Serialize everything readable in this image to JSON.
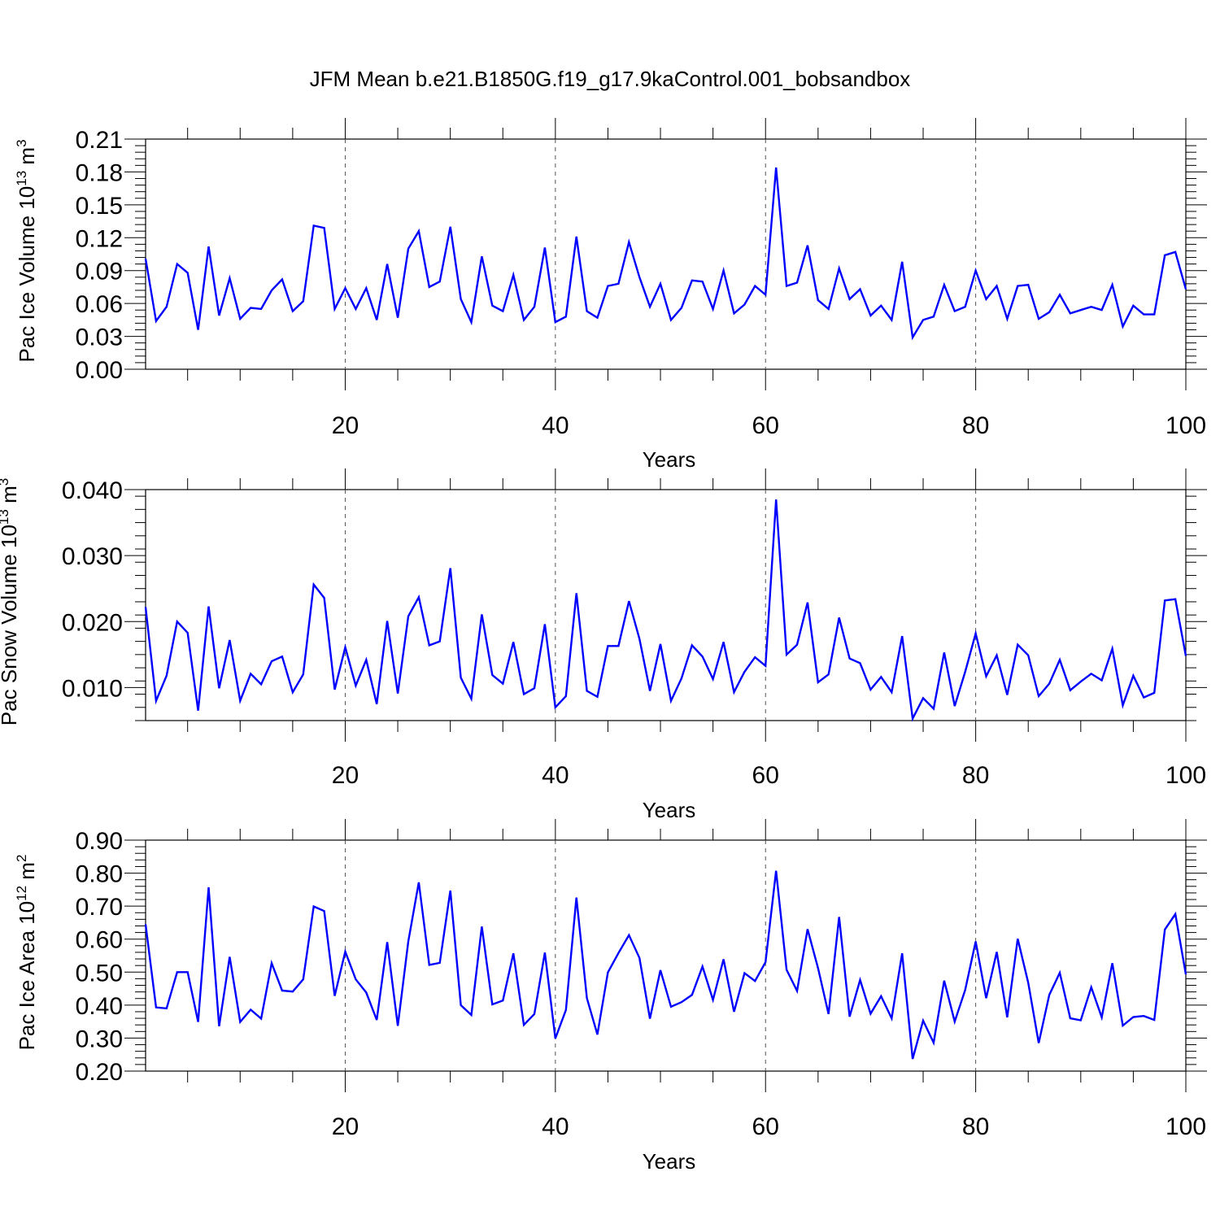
{
  "figure": {
    "title": "JFM Mean b.e21.B1850G.f19_g17.9kaControl.001_bobsandbox"
  },
  "chart_data": [
    {
      "type": "line",
      "ylabel": "Pac Ice Volume 10",
      "ylabel_exp": "13",
      "ylabel_unit": "m",
      "ylabel_unit_exp": "3",
      "xlabel": "Years",
      "xlim": [
        1,
        100
      ],
      "ylim": [
        0.0,
        0.21
      ],
      "x_ticks": [
        "20",
        "40",
        "60",
        "80",
        "100"
      ],
      "y_ticks": [
        "0.00",
        "0.03",
        "0.06",
        "0.09",
        "0.12",
        "0.15",
        "0.18",
        "0.21"
      ],
      "grid": "dashed vertical lines at 20, 40, 60, 80",
      "series": [
        {
          "color": "#0000ff",
          "x_start": 1,
          "values": [
            0.101,
            0.044,
            0.057,
            0.096,
            0.088,
            0.036,
            0.112,
            0.049,
            0.083,
            0.046,
            0.056,
            0.055,
            0.072,
            0.082,
            0.053,
            0.062,
            0.131,
            0.129,
            0.055,
            0.074,
            0.055,
            0.074,
            0.045,
            0.096,
            0.047,
            0.11,
            0.126,
            0.075,
            0.08,
            0.13,
            0.064,
            0.043,
            0.103,
            0.058,
            0.053,
            0.086,
            0.045,
            0.057,
            0.111,
            0.043,
            0.048,
            0.121,
            0.053,
            0.047,
            0.076,
            0.078,
            0.116,
            0.084,
            0.057,
            0.078,
            0.045,
            0.056,
            0.081,
            0.08,
            0.055,
            0.09,
            0.051,
            0.059,
            0.076,
            0.068,
            0.184,
            0.076,
            0.079,
            0.113,
            0.063,
            0.055,
            0.092,
            0.064,
            0.073,
            0.049,
            0.058,
            0.045,
            0.098,
            0.029,
            0.045,
            0.048,
            0.077,
            0.053,
            0.057,
            0.09,
            0.064,
            0.076,
            0.046,
            0.076,
            0.077,
            0.046,
            0.052,
            0.068,
            0.051,
            0.054,
            0.057,
            0.054,
            0.077,
            0.039,
            0.058,
            0.05,
            0.05,
            0.104,
            0.107,
            0.073
          ]
        }
      ]
    },
    {
      "type": "line",
      "ylabel": "Pac Snow Volume 10",
      "ylabel_exp": "13",
      "ylabel_unit": "m",
      "ylabel_unit_exp": "3",
      "xlabel": "Years",
      "xlim": [
        1,
        100
      ],
      "ylim": [
        0.005,
        0.04
      ],
      "x_ticks": [
        "20",
        "40",
        "60",
        "80",
        "100"
      ],
      "y_ticks": [
        "0.010",
        "0.020",
        "0.030",
        "0.040"
      ],
      "grid": "dashed vertical lines at 20, 40, 60, 80",
      "series": [
        {
          "color": "#0000ff",
          "x_start": 1,
          "values": [
            0.0222,
            0.008,
            0.0118,
            0.02,
            0.0183,
            0.0065,
            0.0223,
            0.0099,
            0.0172,
            0.008,
            0.0121,
            0.0105,
            0.014,
            0.0147,
            0.0093,
            0.012,
            0.0256,
            0.0236,
            0.0097,
            0.0161,
            0.0103,
            0.0142,
            0.0075,
            0.0201,
            0.0091,
            0.0208,
            0.0237,
            0.0164,
            0.017,
            0.0281,
            0.0115,
            0.0083,
            0.0211,
            0.0119,
            0.0106,
            0.0169,
            0.009,
            0.0099,
            0.0196,
            0.007,
            0.0087,
            0.0243,
            0.0095,
            0.0086,
            0.0163,
            0.0163,
            0.0231,
            0.0174,
            0.0095,
            0.0166,
            0.008,
            0.0114,
            0.0164,
            0.0147,
            0.0113,
            0.0169,
            0.0093,
            0.0124,
            0.0146,
            0.0133,
            0.0385,
            0.015,
            0.0165,
            0.0229,
            0.0108,
            0.012,
            0.0206,
            0.0144,
            0.0137,
            0.0097,
            0.0116,
            0.0093,
            0.0178,
            0.0053,
            0.0084,
            0.0068,
            0.0153,
            0.0072,
            0.0124,
            0.0182,
            0.0117,
            0.0149,
            0.0089,
            0.0165,
            0.0149,
            0.0087,
            0.0106,
            0.0142,
            0.0096,
            0.0109,
            0.0121,
            0.0111,
            0.0159,
            0.0073,
            0.0118,
            0.0085,
            0.0092,
            0.0232,
            0.0234,
            0.0148
          ]
        }
      ]
    },
    {
      "type": "line",
      "ylabel": "Pac Ice Area 10",
      "ylabel_exp": "12",
      "ylabel_unit": "m",
      "ylabel_unit_exp": "2",
      "xlabel": "Years",
      "xlim": [
        1,
        100
      ],
      "ylim": [
        0.2,
        0.9
      ],
      "x_ticks": [
        "20",
        "40",
        "60",
        "80",
        "100"
      ],
      "y_ticks": [
        "0.20",
        "0.30",
        "0.40",
        "0.50",
        "0.60",
        "0.70",
        "0.80",
        "0.90"
      ],
      "grid": "dashed vertical lines at 20, 40, 60, 80",
      "series": [
        {
          "color": "#0000ff",
          "x_start": 1,
          "values": [
            0.645,
            0.393,
            0.39,
            0.5,
            0.5,
            0.349,
            0.757,
            0.336,
            0.546,
            0.349,
            0.386,
            0.359,
            0.527,
            0.444,
            0.441,
            0.478,
            0.699,
            0.685,
            0.428,
            0.562,
            0.478,
            0.438,
            0.355,
            0.591,
            0.337,
            0.593,
            0.772,
            0.522,
            0.528,
            0.747,
            0.4,
            0.37,
            0.638,
            0.402,
            0.414,
            0.557,
            0.34,
            0.373,
            0.559,
            0.299,
            0.385,
            0.726,
            0.421,
            0.311,
            0.499,
            0.558,
            0.612,
            0.543,
            0.359,
            0.506,
            0.395,
            0.409,
            0.431,
            0.517,
            0.416,
            0.539,
            0.38,
            0.497,
            0.473,
            0.53,
            0.807,
            0.507,
            0.443,
            0.63,
            0.512,
            0.373,
            0.667,
            0.365,
            0.476,
            0.374,
            0.427,
            0.36,
            0.557,
            0.237,
            0.353,
            0.286,
            0.474,
            0.35,
            0.446,
            0.593,
            0.421,
            0.561,
            0.363,
            0.601,
            0.468,
            0.285,
            0.431,
            0.498,
            0.36,
            0.354,
            0.454,
            0.363,
            0.527,
            0.338,
            0.364,
            0.367,
            0.355,
            0.629,
            0.676,
            0.493
          ]
        }
      ]
    }
  ]
}
